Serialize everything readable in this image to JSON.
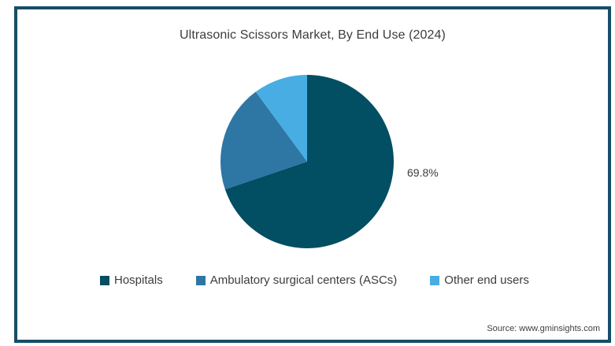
{
  "title": "Ultrasonic Scissors Market, By End Use (2024)",
  "source": "Source: www.gminsights.com",
  "frame_color": "#164E68",
  "chart_data": {
    "type": "pie",
    "title": "Ultrasonic Scissors Market, By End Use (2024)",
    "labels": [
      "Hospitals",
      "Ambulatory surgical centers (ASCs)",
      "Other end users"
    ],
    "values": [
      69.8,
      20.1,
      10.1
    ],
    "colors": [
      "#024E63",
      "#2E76A4",
      "#47ADE2"
    ],
    "start_angle_deg": 0,
    "direction": "clockwise",
    "data_labels": [
      "69.8%",
      "",
      ""
    ],
    "legend_position": "bottom"
  }
}
